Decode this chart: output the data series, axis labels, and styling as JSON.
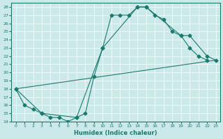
{
  "xlabel": "Humidex (Indice chaleur)",
  "xlim": [
    -0.5,
    23.5
  ],
  "ylim": [
    14,
    28.5
  ],
  "yticks": [
    14,
    15,
    16,
    17,
    18,
    19,
    20,
    21,
    22,
    23,
    24,
    25,
    26,
    27,
    28
  ],
  "xticks": [
    0,
    1,
    2,
    3,
    4,
    5,
    6,
    7,
    8,
    9,
    10,
    11,
    12,
    13,
    14,
    15,
    16,
    17,
    18,
    19,
    20,
    21,
    22,
    23
  ],
  "bg_color": "#cce9e9",
  "line_color": "#1a7a6e",
  "line1_x": [
    0,
    1,
    2,
    3,
    4,
    5,
    6,
    7,
    8,
    9,
    10,
    11,
    12,
    13,
    14,
    15,
    16,
    17,
    18,
    19,
    20,
    21,
    22
  ],
  "line1_y": [
    18,
    16,
    15.5,
    15,
    14.5,
    14.5,
    14,
    14.5,
    15,
    19.5,
    23,
    27,
    27,
    27,
    28,
    28,
    27,
    26.5,
    25,
    24.5,
    23,
    22,
    21.5
  ],
  "line2_x": [
    0,
    3,
    7,
    10,
    14,
    15,
    19,
    20,
    22,
    23
  ],
  "line2_y": [
    18,
    15,
    14.5,
    23,
    28,
    28,
    24.5,
    24.5,
    22,
    21.5
  ],
  "line3_x": [
    0,
    23
  ],
  "line3_y": [
    18,
    21.5
  ],
  "marker": "D",
  "markersize": 2.5
}
